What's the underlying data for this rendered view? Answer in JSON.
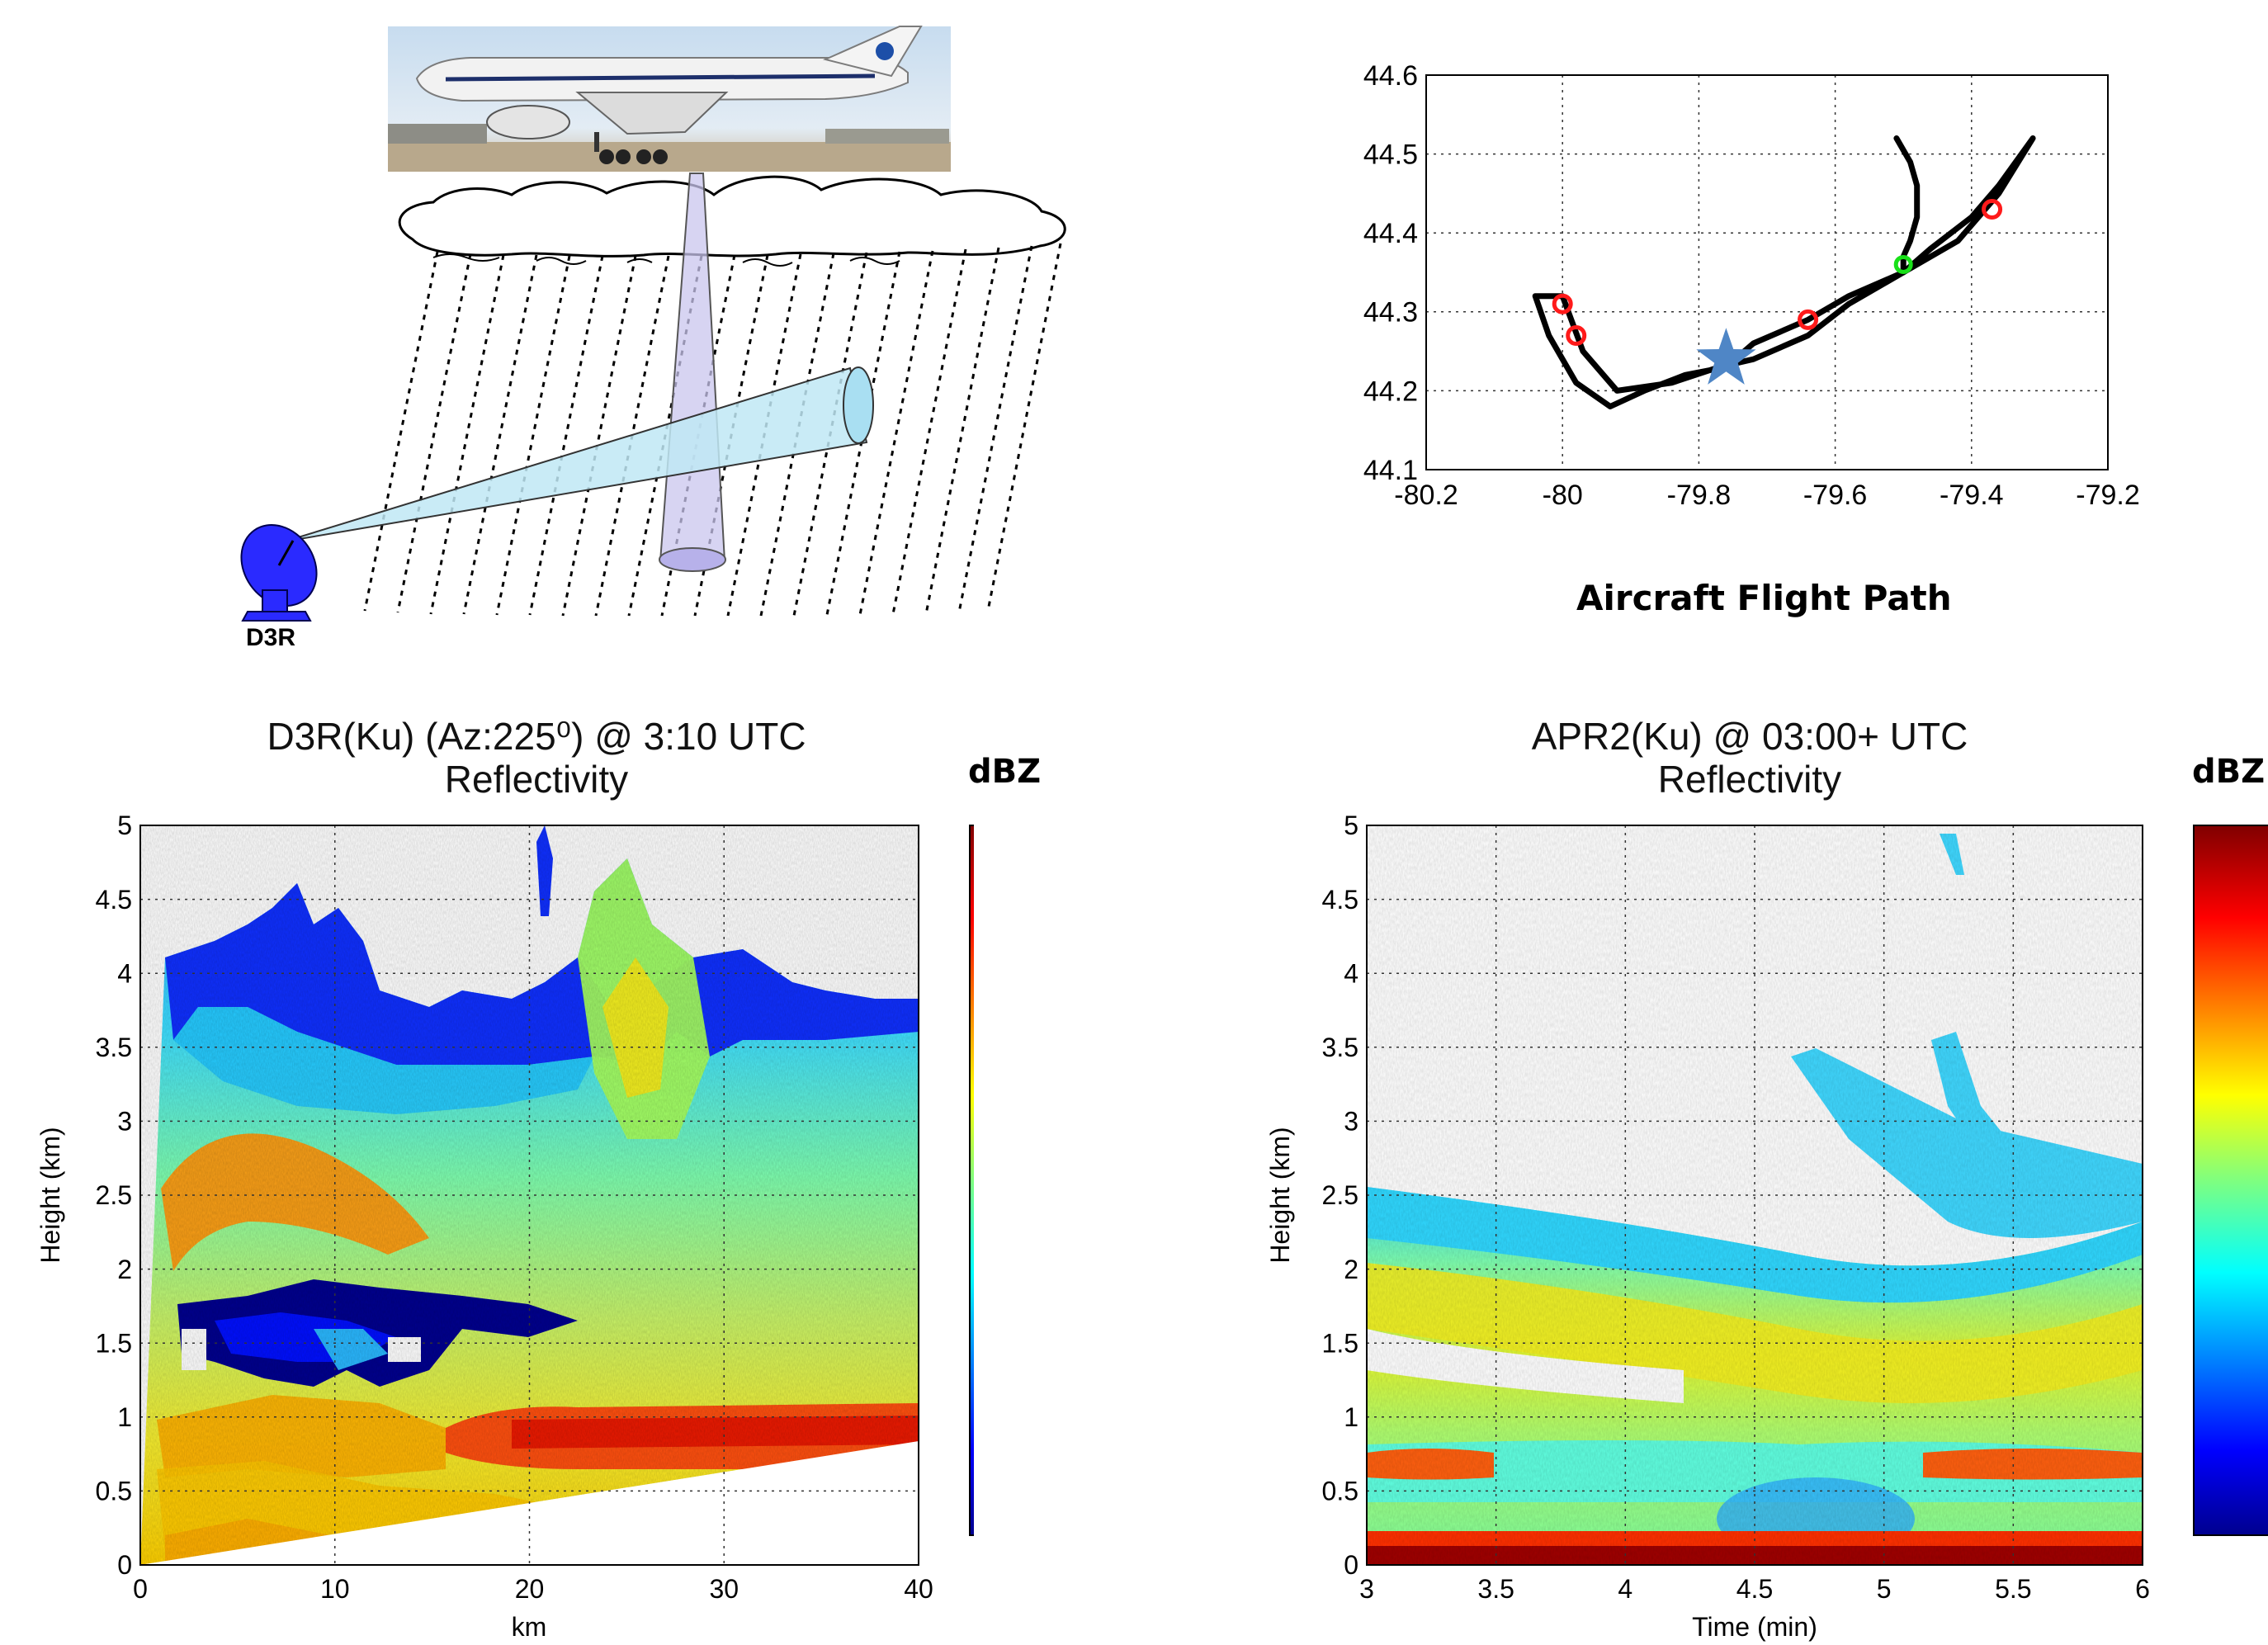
{
  "diagram": {
    "radar_label": "D3R",
    "colors": {
      "rain": "#000000",
      "beam_ground": "#bfe8f5",
      "beam_air": "#c9c5ee",
      "dish": "#1a1aff"
    }
  },
  "chart_data": [
    {
      "id": "flight-path",
      "type": "line",
      "caption": "Aircraft Flight Path",
      "xlim": [
        -80.2,
        -79.2
      ],
      "ylim": [
        44.1,
        44.6
      ],
      "xticks": [
        "-80.2",
        "-80",
        "-79.8",
        "-79.6",
        "-79.4",
        "-79.2"
      ],
      "yticks": [
        "44.1",
        "44.2",
        "44.3",
        "44.4",
        "44.5",
        "44.6"
      ],
      "grid": true,
      "series": [
        {
          "x": [
            -79.31,
            -79.36,
            -79.42,
            -79.5,
            -79.58,
            -79.64,
            -79.72,
            -79.76,
            -79.82,
            -79.88,
            -79.93,
            -79.98,
            -80.02,
            -80.04,
            -80.0,
            -79.97,
            -79.92,
            -79.84,
            -79.77,
            -79.72,
            -79.64,
            -79.58,
            -79.5,
            -79.46,
            -79.4,
            -79.36,
            -79.31
          ],
          "y": [
            44.52,
            44.45,
            44.39,
            44.35,
            44.32,
            44.29,
            44.26,
            44.23,
            44.22,
            44.2,
            44.18,
            44.21,
            44.27,
            44.32,
            44.32,
            44.25,
            44.2,
            44.21,
            44.23,
            44.24,
            44.27,
            44.31,
            44.35,
            44.38,
            44.42,
            44.46,
            44.52
          ]
        },
        {
          "x": [
            -79.5,
            -79.5,
            -79.49,
            -79.48,
            -79.48,
            -79.49,
            -79.51
          ],
          "y": [
            44.35,
            44.37,
            44.39,
            44.42,
            44.46,
            44.49,
            44.52
          ]
        }
      ],
      "markers_red": [
        [
          -80.0,
          44.31
        ],
        [
          -79.98,
          44.27
        ],
        [
          -79.64,
          44.29
        ],
        [
          -79.37,
          44.43
        ]
      ],
      "marker_green": [
        -79.5,
        44.36
      ],
      "star": [
        -79.76,
        44.24
      ]
    },
    {
      "id": "d3r-reflectivity",
      "type": "heatmap",
      "title": "D3R(Ku) (Az:225⁰) @ 3:10 UTC",
      "subtitle": "Reflectivity",
      "xlabel": "km",
      "ylabel": "Height (km)",
      "xlim": [
        0,
        40
      ],
      "ylim": [
        0,
        5
      ],
      "xticks": [
        "0",
        "10",
        "20",
        "30",
        "40"
      ],
      "yticks": [
        "0",
        "0.5",
        "1",
        "1.5",
        "2",
        "2.5",
        "3",
        "3.5",
        "4",
        "4.5",
        "5"
      ],
      "colorbar": {
        "label": "dBZ",
        "range": [
          -5,
          35
        ],
        "ticks": [
          "35",
          "30",
          "25",
          "20",
          "15",
          "10",
          "5",
          "0",
          "-5"
        ]
      },
      "features": [
        {
          "type": "bright band",
          "height_km": 1.1,
          "x_range_km": [
            15,
            40
          ],
          "dbz": 28
        },
        {
          "type": "echo top",
          "height_km": 3.3,
          "dbz": 0
        }
      ]
    },
    {
      "id": "apr2-reflectivity",
      "type": "heatmap",
      "title": "APR2(Ku) @ 03:00+ UTC",
      "subtitle": "Reflectivity",
      "xlabel": "Time (min)",
      "ylabel": "Height (km)",
      "xlim": [
        3,
        6
      ],
      "ylim": [
        0,
        5
      ],
      "xticks": [
        "3",
        "3.5",
        "4",
        "4.5",
        "5",
        "5.5",
        "6"
      ],
      "yticks": [
        "0",
        "0.5",
        "1",
        "1.5",
        "2",
        "2.5",
        "3",
        "3.5",
        "4",
        "4.5",
        "5"
      ],
      "colorbar": {
        "label": "dBZ",
        "range": [
          -5,
          35
        ]
      },
      "features": [
        {
          "type": "surface return",
          "height_km": 0.1,
          "dbz": 35
        },
        {
          "type": "bright band",
          "height_km": 1.05,
          "dbz": 27
        }
      ]
    }
  ]
}
